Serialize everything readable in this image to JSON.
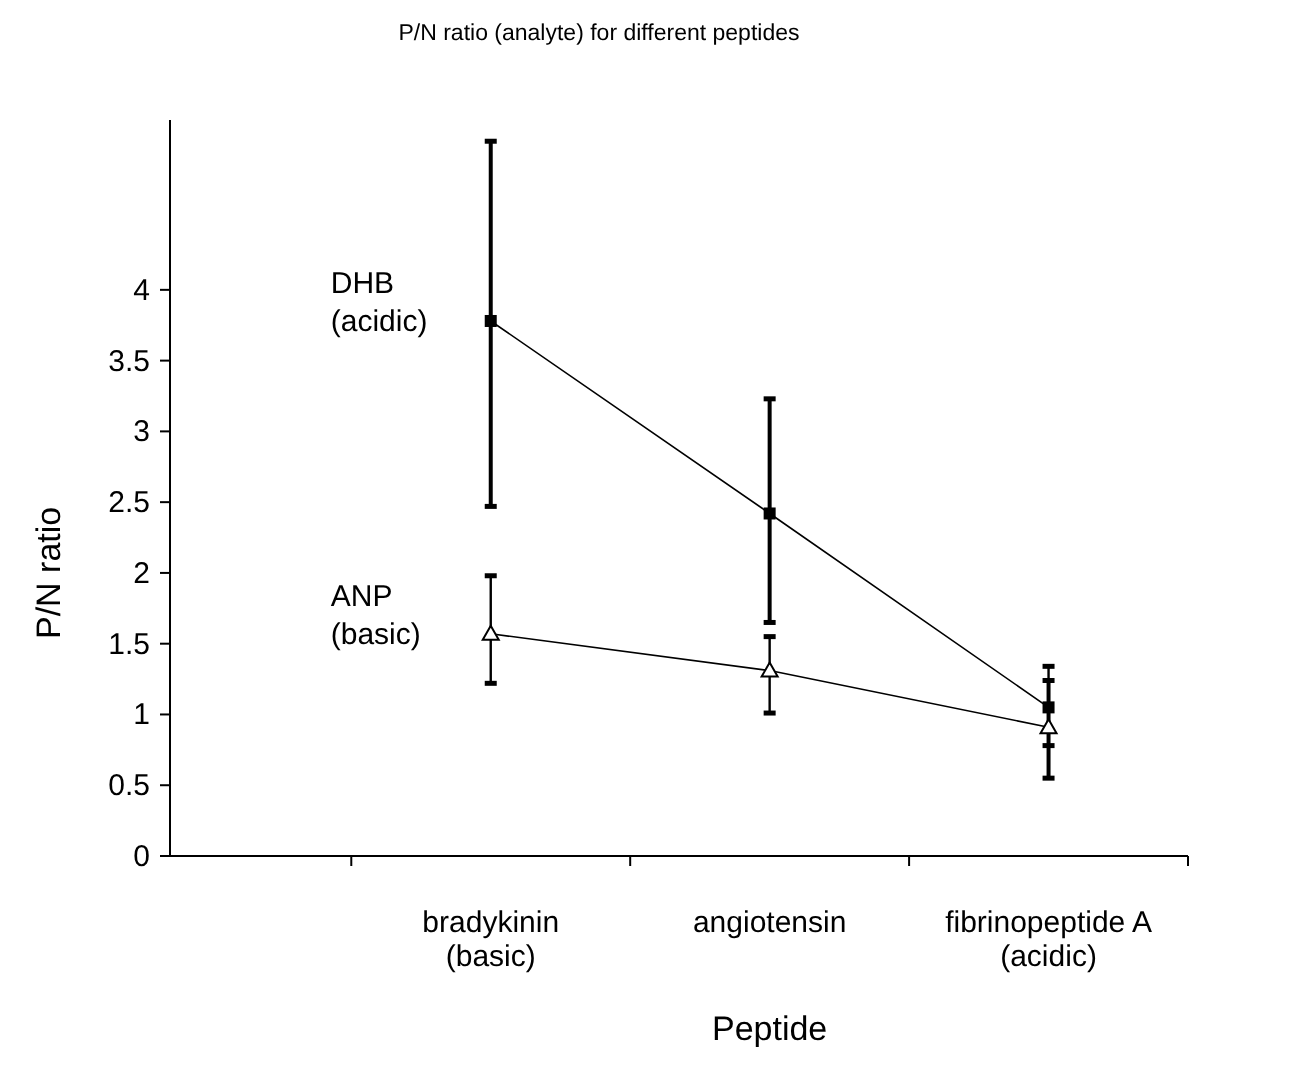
{
  "chart_data": {
    "type": "line",
    "title": "P/N ratio (analyte) for different peptides",
    "xlabel": "Peptide",
    "ylabel": "P/N ratio",
    "categories": [
      "bradykinin\n(basic)",
      "angiotensin",
      "fibrinopeptide A\n(acidic)"
    ],
    "ylim": [
      0,
      5.2
    ],
    "yticks": [
      0,
      0.5,
      1,
      1.5,
      2,
      2.5,
      3,
      3.5,
      4
    ],
    "grid": false,
    "series": [
      {
        "name": "DHB\n(acidic)",
        "color": "#000000",
        "marker": "square",
        "values": [
          3.78,
          2.42,
          1.05
        ],
        "errors": [
          [
            2.47,
            5.05
          ],
          [
            1.65,
            3.23
          ],
          [
            0.55,
            1.24
          ]
        ]
      },
      {
        "name": "ANP\n(basic)",
        "color": "#000000",
        "marker": "triangle",
        "values": [
          1.57,
          1.31,
          0.91
        ],
        "errors": [
          [
            1.22,
            1.98
          ],
          [
            1.01,
            1.55
          ],
          [
            0.78,
            1.34
          ]
        ]
      }
    ]
  }
}
